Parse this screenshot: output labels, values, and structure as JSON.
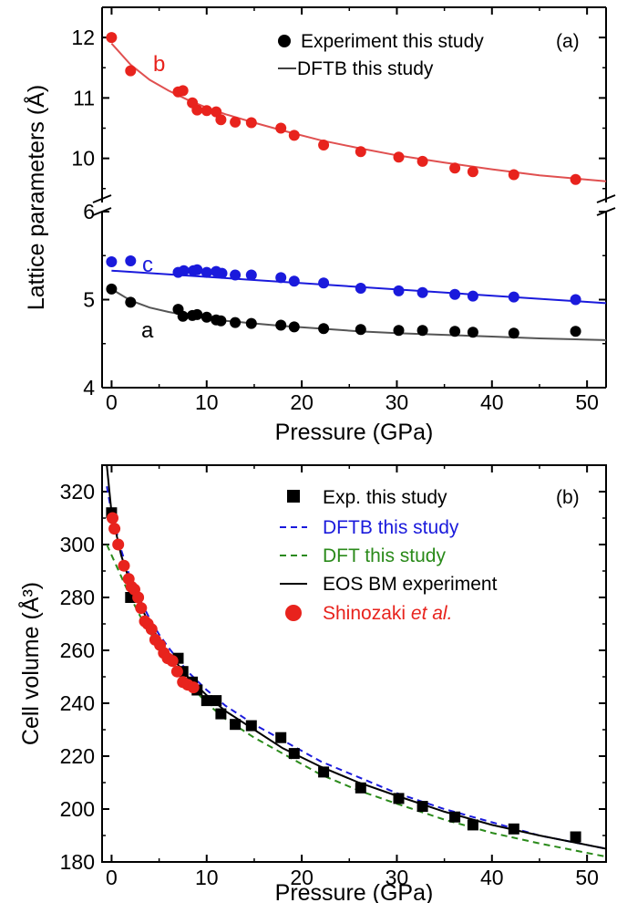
{
  "colors": {
    "b": "#e8231d",
    "a": "#000000",
    "c": "#1a1adc",
    "curve_b": "#e05050",
    "curve_a": "#555555",
    "dftb": "#1a1adc",
    "dft": "#2a8a1a",
    "eos": "#000000",
    "shinozaki": "#e8231d"
  },
  "chart_data": [
    {
      "type": "scatter",
      "panel_label": "(a)",
      "xlabel": "Pressure (GPa)",
      "ylabel": "Lattice parameters (Å)",
      "xlim": [
        -1,
        52
      ],
      "x_ticks": [
        "0",
        "10",
        "20",
        "30",
        "40",
        "50"
      ],
      "y_ticks_upper": [
        "10",
        "11",
        "12"
      ],
      "y_ticks_lower": [
        "4",
        "5",
        "6"
      ],
      "ylim_upper": [
        9.3,
        12.5
      ],
      "ylim_lower": [
        4.0,
        6.0
      ],
      "broken_axis": true,
      "legend": {
        "position": "top-right",
        "entries": [
          {
            "label": "Experiment this study",
            "marker": "circle"
          },
          {
            "label": "DFTB this study",
            "marker": "line"
          }
        ]
      },
      "series": [
        {
          "name": "b",
          "marker": "circle",
          "x": [
            0,
            2,
            7,
            7.5,
            8.5,
            9,
            10,
            11,
            11.5,
            13,
            14.7,
            17.8,
            19.2,
            22.3,
            26.2,
            30.2,
            32.7,
            36.1,
            38,
            42.3,
            48.8
          ],
          "y": [
            12.0,
            11.45,
            11.1,
            11.12,
            10.92,
            10.8,
            10.79,
            10.77,
            10.64,
            10.6,
            10.59,
            10.5,
            10.38,
            10.22,
            10.11,
            10.02,
            9.95,
            9.84,
            9.78,
            9.73,
            9.65
          ]
        },
        {
          "name": "c",
          "marker": "circle",
          "x": [
            0,
            2,
            7,
            7.6,
            8.6,
            9,
            10,
            11,
            11.6,
            13,
            14.7,
            17.8,
            19.2,
            22.3,
            26.2,
            30.2,
            32.7,
            36.1,
            38,
            42.3,
            48.8
          ],
          "y": [
            5.43,
            5.44,
            5.31,
            5.33,
            5.33,
            5.34,
            5.31,
            5.32,
            5.3,
            5.28,
            5.28,
            5.25,
            5.21,
            5.19,
            5.13,
            5.1,
            5.08,
            5.06,
            5.04,
            5.03,
            5.0
          ],
          "dftb_x": [
            0,
            52
          ],
          "dftb_y": [
            5.33,
            4.96
          ]
        },
        {
          "name": "a",
          "marker": "circle",
          "x": [
            0,
            2,
            7,
            7.5,
            8.5,
            9,
            10,
            11,
            11.5,
            13,
            14.7,
            17.8,
            19.2,
            22.3,
            26.2,
            30.2,
            32.7,
            36.1,
            38,
            42.3,
            48.8
          ],
          "y": [
            5.12,
            4.97,
            4.89,
            4.81,
            4.82,
            4.83,
            4.8,
            4.77,
            4.76,
            4.74,
            4.73,
            4.71,
            4.69,
            4.67,
            4.66,
            4.65,
            4.65,
            4.64,
            4.63,
            4.62,
            4.64
          ]
        }
      ],
      "dftb_curves": {
        "b": {
          "x": [
            0,
            2,
            4,
            6,
            8,
            10,
            12,
            15,
            18,
            22,
            26,
            30,
            35,
            40,
            45,
            52
          ],
          "y": [
            11.9,
            11.55,
            11.3,
            11.12,
            10.97,
            10.84,
            10.73,
            10.59,
            10.46,
            10.3,
            10.17,
            10.05,
            9.93,
            9.82,
            9.72,
            9.62
          ]
        },
        "a": {
          "x": [
            0,
            2,
            4,
            6,
            8,
            10,
            12,
            15,
            18,
            22,
            26,
            30,
            35,
            40,
            45,
            52
          ],
          "y": [
            5.12,
            4.99,
            4.91,
            4.86,
            4.82,
            4.79,
            4.76,
            4.73,
            4.7,
            4.67,
            4.64,
            4.62,
            4.6,
            4.58,
            4.56,
            4.54
          ]
        }
      }
    },
    {
      "type": "scatter",
      "panel_label": "(b)",
      "xlabel": "Pressure (GPa)",
      "ylabel": "Cell volume (Å³)",
      "xlim": [
        -1,
        52
      ],
      "ylim": [
        180,
        330
      ],
      "x_ticks": [
        "0",
        "10",
        "20",
        "30",
        "40",
        "50"
      ],
      "y_ticks": [
        "180",
        "200",
        "220",
        "240",
        "260",
        "280",
        "300",
        "320"
      ],
      "legend": {
        "position": "top-right",
        "entries": [
          {
            "label": "Exp. this study",
            "marker": "square"
          },
          {
            "label": "DFTB this study",
            "marker": "dashed-line"
          },
          {
            "label": "DFT this study",
            "marker": "dashed-line"
          },
          {
            "label": "EOS BM experiment",
            "marker": "line"
          },
          {
            "label": "Shinozaki ",
            "label_italic": "et al.",
            "marker": "circle"
          }
        ]
      },
      "series": [
        {
          "name": "Exp. this study",
          "x": [
            0,
            2,
            7,
            7.5,
            8.5,
            9,
            10,
            11,
            11.5,
            13,
            14.7,
            17.8,
            19.2,
            22.3,
            26.2,
            30.2,
            32.7,
            36.1,
            38,
            42.3,
            48.8
          ],
          "y": [
            312,
            280,
            257,
            252,
            248,
            245,
            241,
            241,
            236,
            232,
            231.5,
            227,
            221,
            214,
            208,
            204,
            201,
            197,
            194,
            192.5,
            189.5
          ]
        },
        {
          "name": "Shinozaki et al.",
          "x": [
            0.1,
            0.3,
            0.7,
            1.3,
            1.8,
            2.1,
            2.4,
            2.8,
            3.1,
            3.5,
            3.8,
            4.2,
            4.6,
            5.1,
            5.5,
            5.9,
            6.4,
            6.9,
            7.5,
            8.0,
            8.6
          ],
          "y": [
            310,
            306,
            300,
            292,
            287,
            284,
            283,
            280,
            276,
            271,
            270,
            268,
            264,
            262,
            259,
            257,
            256,
            252,
            248,
            247,
            246
          ]
        }
      ],
      "curves": {
        "dftb": {
          "x": [
            -0.5,
            0,
            1,
            2,
            3,
            4,
            5,
            6,
            8,
            10,
            12,
            15,
            18,
            22,
            26,
            30,
            35,
            40,
            45,
            52
          ],
          "y": [
            322,
            312,
            298,
            287,
            279,
            272,
            266,
            261,
            252,
            245,
            239,
            232,
            226,
            218,
            212,
            206,
            200,
            195,
            190,
            185
          ]
        },
        "dft": {
          "x": [
            -0.5,
            0,
            1,
            2,
            3,
            4,
            5,
            6,
            8,
            10,
            12,
            15,
            18,
            22,
            26,
            30,
            35,
            40,
            45,
            52
          ],
          "y": [
            300,
            296,
            288,
            280,
            273,
            267,
            261,
            256,
            248,
            240,
            234,
            227,
            221,
            213,
            207,
            202,
            196,
            191,
            187,
            182
          ]
        },
        "eos": {
          "x": [
            -0.5,
            0,
            1,
            2,
            3,
            4,
            5,
            6,
            8,
            10,
            12,
            15,
            18,
            22,
            26,
            30,
            35,
            40,
            45,
            52
          ],
          "y": [
            330,
            312,
            296,
            285,
            277,
            270,
            264,
            259,
            250,
            243,
            237,
            230,
            223,
            216,
            210,
            205,
            199,
            194,
            190,
            185
          ]
        }
      }
    }
  ]
}
